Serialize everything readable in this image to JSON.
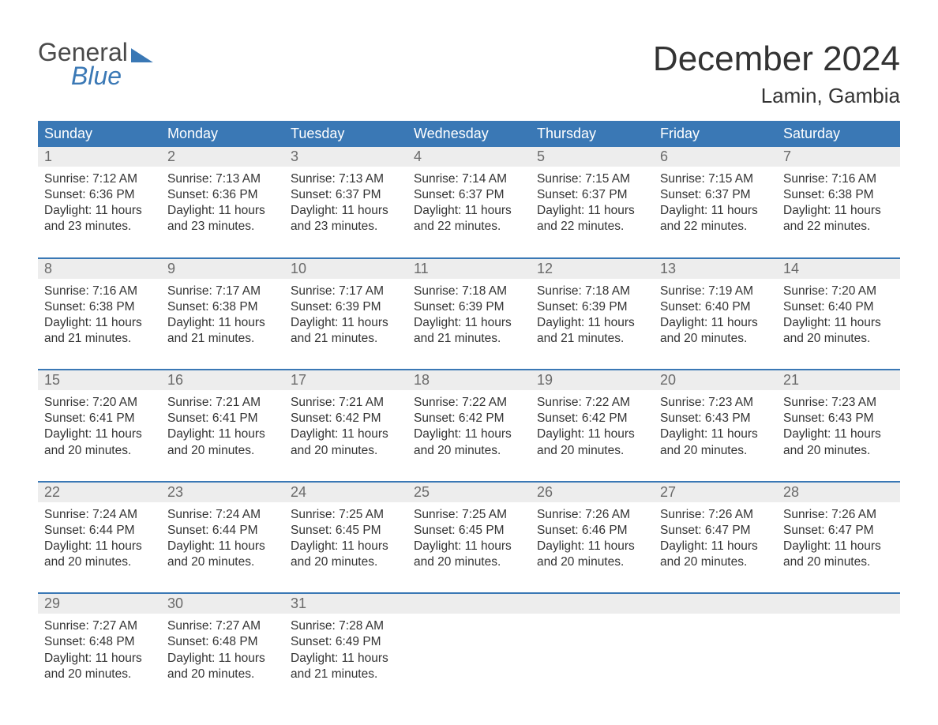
{
  "brand": {
    "general": "General",
    "blue": "Blue"
  },
  "title": "December 2024",
  "location": "Lamin, Gambia",
  "colors": {
    "header_bg": "#3a78b5",
    "header_text": "#ffffff",
    "daynum_bg": "#ededed",
    "daynum_text": "#6a6a6a",
    "body_text": "#333333",
    "week_border": "#3a78b5",
    "page_bg": "#ffffff"
  },
  "typography": {
    "title_fontsize": 44,
    "location_fontsize": 26,
    "header_fontsize": 18,
    "daynum_fontsize": 18,
    "cell_fontsize": 15.5
  },
  "day_labels": [
    "Sunday",
    "Monday",
    "Tuesday",
    "Wednesday",
    "Thursday",
    "Friday",
    "Saturday"
  ],
  "weeks": [
    [
      {
        "n": "1",
        "sr": "Sunrise: 7:12 AM",
        "ss": "Sunset: 6:36 PM",
        "d1": "Daylight: 11 hours",
        "d2": "and 23 minutes."
      },
      {
        "n": "2",
        "sr": "Sunrise: 7:13 AM",
        "ss": "Sunset: 6:36 PM",
        "d1": "Daylight: 11 hours",
        "d2": "and 23 minutes."
      },
      {
        "n": "3",
        "sr": "Sunrise: 7:13 AM",
        "ss": "Sunset: 6:37 PM",
        "d1": "Daylight: 11 hours",
        "d2": "and 23 minutes."
      },
      {
        "n": "4",
        "sr": "Sunrise: 7:14 AM",
        "ss": "Sunset: 6:37 PM",
        "d1": "Daylight: 11 hours",
        "d2": "and 22 minutes."
      },
      {
        "n": "5",
        "sr": "Sunrise: 7:15 AM",
        "ss": "Sunset: 6:37 PM",
        "d1": "Daylight: 11 hours",
        "d2": "and 22 minutes."
      },
      {
        "n": "6",
        "sr": "Sunrise: 7:15 AM",
        "ss": "Sunset: 6:37 PM",
        "d1": "Daylight: 11 hours",
        "d2": "and 22 minutes."
      },
      {
        "n": "7",
        "sr": "Sunrise: 7:16 AM",
        "ss": "Sunset: 6:38 PM",
        "d1": "Daylight: 11 hours",
        "d2": "and 22 minutes."
      }
    ],
    [
      {
        "n": "8",
        "sr": "Sunrise: 7:16 AM",
        "ss": "Sunset: 6:38 PM",
        "d1": "Daylight: 11 hours",
        "d2": "and 21 minutes."
      },
      {
        "n": "9",
        "sr": "Sunrise: 7:17 AM",
        "ss": "Sunset: 6:38 PM",
        "d1": "Daylight: 11 hours",
        "d2": "and 21 minutes."
      },
      {
        "n": "10",
        "sr": "Sunrise: 7:17 AM",
        "ss": "Sunset: 6:39 PM",
        "d1": "Daylight: 11 hours",
        "d2": "and 21 minutes."
      },
      {
        "n": "11",
        "sr": "Sunrise: 7:18 AM",
        "ss": "Sunset: 6:39 PM",
        "d1": "Daylight: 11 hours",
        "d2": "and 21 minutes."
      },
      {
        "n": "12",
        "sr": "Sunrise: 7:18 AM",
        "ss": "Sunset: 6:39 PM",
        "d1": "Daylight: 11 hours",
        "d2": "and 21 minutes."
      },
      {
        "n": "13",
        "sr": "Sunrise: 7:19 AM",
        "ss": "Sunset: 6:40 PM",
        "d1": "Daylight: 11 hours",
        "d2": "and 20 minutes."
      },
      {
        "n": "14",
        "sr": "Sunrise: 7:20 AM",
        "ss": "Sunset: 6:40 PM",
        "d1": "Daylight: 11 hours",
        "d2": "and 20 minutes."
      }
    ],
    [
      {
        "n": "15",
        "sr": "Sunrise: 7:20 AM",
        "ss": "Sunset: 6:41 PM",
        "d1": "Daylight: 11 hours",
        "d2": "and 20 minutes."
      },
      {
        "n": "16",
        "sr": "Sunrise: 7:21 AM",
        "ss": "Sunset: 6:41 PM",
        "d1": "Daylight: 11 hours",
        "d2": "and 20 minutes."
      },
      {
        "n": "17",
        "sr": "Sunrise: 7:21 AM",
        "ss": "Sunset: 6:42 PM",
        "d1": "Daylight: 11 hours",
        "d2": "and 20 minutes."
      },
      {
        "n": "18",
        "sr": "Sunrise: 7:22 AM",
        "ss": "Sunset: 6:42 PM",
        "d1": "Daylight: 11 hours",
        "d2": "and 20 minutes."
      },
      {
        "n": "19",
        "sr": "Sunrise: 7:22 AM",
        "ss": "Sunset: 6:42 PM",
        "d1": "Daylight: 11 hours",
        "d2": "and 20 minutes."
      },
      {
        "n": "20",
        "sr": "Sunrise: 7:23 AM",
        "ss": "Sunset: 6:43 PM",
        "d1": "Daylight: 11 hours",
        "d2": "and 20 minutes."
      },
      {
        "n": "21",
        "sr": "Sunrise: 7:23 AM",
        "ss": "Sunset: 6:43 PM",
        "d1": "Daylight: 11 hours",
        "d2": "and 20 minutes."
      }
    ],
    [
      {
        "n": "22",
        "sr": "Sunrise: 7:24 AM",
        "ss": "Sunset: 6:44 PM",
        "d1": "Daylight: 11 hours",
        "d2": "and 20 minutes."
      },
      {
        "n": "23",
        "sr": "Sunrise: 7:24 AM",
        "ss": "Sunset: 6:44 PM",
        "d1": "Daylight: 11 hours",
        "d2": "and 20 minutes."
      },
      {
        "n": "24",
        "sr": "Sunrise: 7:25 AM",
        "ss": "Sunset: 6:45 PM",
        "d1": "Daylight: 11 hours",
        "d2": "and 20 minutes."
      },
      {
        "n": "25",
        "sr": "Sunrise: 7:25 AM",
        "ss": "Sunset: 6:45 PM",
        "d1": "Daylight: 11 hours",
        "d2": "and 20 minutes."
      },
      {
        "n": "26",
        "sr": "Sunrise: 7:26 AM",
        "ss": "Sunset: 6:46 PM",
        "d1": "Daylight: 11 hours",
        "d2": "and 20 minutes."
      },
      {
        "n": "27",
        "sr": "Sunrise: 7:26 AM",
        "ss": "Sunset: 6:47 PM",
        "d1": "Daylight: 11 hours",
        "d2": "and 20 minutes."
      },
      {
        "n": "28",
        "sr": "Sunrise: 7:26 AM",
        "ss": "Sunset: 6:47 PM",
        "d1": "Daylight: 11 hours",
        "d2": "and 20 minutes."
      }
    ],
    [
      {
        "n": "29",
        "sr": "Sunrise: 7:27 AM",
        "ss": "Sunset: 6:48 PM",
        "d1": "Daylight: 11 hours",
        "d2": "and 20 minutes."
      },
      {
        "n": "30",
        "sr": "Sunrise: 7:27 AM",
        "ss": "Sunset: 6:48 PM",
        "d1": "Daylight: 11 hours",
        "d2": "and 20 minutes."
      },
      {
        "n": "31",
        "sr": "Sunrise: 7:28 AM",
        "ss": "Sunset: 6:49 PM",
        "d1": "Daylight: 11 hours",
        "d2": "and 21 minutes."
      },
      null,
      null,
      null,
      null
    ]
  ]
}
